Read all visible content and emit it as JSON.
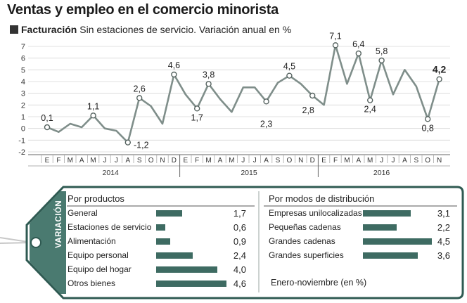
{
  "header": {
    "title": "Ventas y empleo en el comercio minorista",
    "subtitle_bold": "Facturación",
    "subtitle_rest": " Sin estaciones de servicio. Variación anual en %"
  },
  "chart_data": {
    "type": "line",
    "title": "Ventas y empleo en el comercio minorista",
    "subtitle": "Facturación Sin estaciones de servicio. Variación anual en %",
    "ylim": [
      -2,
      7
    ],
    "yticks": [
      -2,
      -1,
      0,
      1,
      2,
      3,
      4,
      5,
      6,
      7
    ],
    "grid": "horizontal",
    "month_labels": [
      "E",
      "F",
      "M",
      "A",
      "M",
      "J",
      "J",
      "A",
      "S",
      "O",
      "N",
      "D",
      "E",
      "F",
      "M",
      "A",
      "M",
      "J",
      "J",
      "A",
      "S",
      "O",
      "N",
      "D",
      "E",
      "F",
      "M",
      "A",
      "M",
      "J",
      "J",
      "A",
      "S",
      "O",
      "N"
    ],
    "year_labels": [
      "2014",
      "2015",
      "2016"
    ],
    "values": [
      0.1,
      -0.3,
      0.4,
      0.1,
      1.1,
      0.0,
      -0.2,
      -1.2,
      2.6,
      1.9,
      0.4,
      4.6,
      2.9,
      1.7,
      3.8,
      2.5,
      1.4,
      3.5,
      3.5,
      2.3,
      3.9,
      4.5,
      3.8,
      2.8,
      2.0,
      7.1,
      3.8,
      6.4,
      2.4,
      5.8,
      2.9,
      5.0,
      3.6,
      0.8,
      4.2
    ],
    "annotations": [
      {
        "index": 0,
        "label": "0,1"
      },
      {
        "index": 4,
        "label": "1,1"
      },
      {
        "index": 7,
        "label": "-1,2"
      },
      {
        "index": 8,
        "label": "2,6"
      },
      {
        "index": 11,
        "label": "4,6"
      },
      {
        "index": 13,
        "label": "1,7"
      },
      {
        "index": 14,
        "label": "3,8"
      },
      {
        "index": 19,
        "label": "2,3"
      },
      {
        "index": 21,
        "label": "4,5"
      },
      {
        "index": 23,
        "label": "2,8"
      },
      {
        "index": 25,
        "label": "7,1"
      },
      {
        "index": 27,
        "label": "6,4"
      },
      {
        "index": 28,
        "label": "2,4"
      },
      {
        "index": 29,
        "label": "5,8"
      },
      {
        "index": 33,
        "label": "0,8"
      },
      {
        "index": 34,
        "label": "4,2"
      }
    ]
  },
  "panel": {
    "tag_label": "VARIACIÓN",
    "products": {
      "title": "Por productos",
      "items": [
        {
          "label": "General",
          "value": 1.7,
          "display": "1,7"
        },
        {
          "label": "Estaciones de servicio",
          "value": 0.6,
          "display": "0,6"
        },
        {
          "label": "Alimentación",
          "value": 0.9,
          "display": "0,9"
        },
        {
          "label": "Equipo personal",
          "value": 2.4,
          "display": "2,4"
        },
        {
          "label": "Equipo del hogar",
          "value": 4.0,
          "display": "4,0"
        },
        {
          "label": "Otros bienes",
          "value": 4.6,
          "display": "4,6"
        }
      ]
    },
    "distribution": {
      "title": "Por modos de distribución",
      "items": [
        {
          "label": "Empresas unilocalizadas",
          "value": 3.1,
          "display": "3,1"
        },
        {
          "label": "Pequeñas cadenas",
          "value": 2.2,
          "display": "2,2"
        },
        {
          "label": "Grandes cadenas",
          "value": 4.5,
          "display": "4,5"
        },
        {
          "label": "Grandes superficies",
          "value": 3.6,
          "display": "3,6"
        }
      ]
    },
    "note": "Enero-noviembre (en %)",
    "colors": {
      "bar": "#3e6b62",
      "tag": "#4a7a70",
      "tag_border": "#2f5a52",
      "line": "#7f8e8a"
    }
  }
}
